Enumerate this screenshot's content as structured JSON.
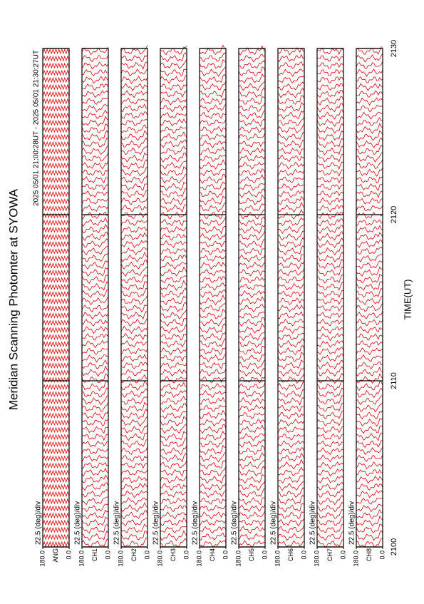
{
  "chart_data": {
    "type": "line",
    "title": "Meridian Scanning Photomter at SYOWA",
    "subtitle": "2025 05/01 21:00:28UT - 2025 05/01 21:30:27UT",
    "xlabel": "TIME(UT)",
    "xlim": [
      2100,
      2130
    ],
    "xticks": [
      2100,
      2110,
      2120,
      2130
    ],
    "ylim": [
      0,
      180
    ],
    "yticks": [
      {
        "value": 0,
        "label": "0.0"
      },
      {
        "value": 180,
        "label": "180.0"
      }
    ],
    "color": "#e00000",
    "panels": [
      {
        "name": "ANG",
        "scale_label": "22.5 (deg)/div"
      },
      {
        "name": "CH1",
        "scale_label": "22.5 (deg)/div"
      },
      {
        "name": "CH2",
        "scale_label": "22.5 (deg)/div"
      },
      {
        "name": "CH3",
        "scale_label": "22.5 (deg)/div"
      },
      {
        "name": "CH4",
        "scale_label": "22.5 (deg)/div"
      },
      {
        "name": "CH5",
        "scale_label": "22.5 (deg)/div"
      },
      {
        "name": "CH6",
        "scale_label": "22.5 (deg)/div"
      },
      {
        "name": "CH7",
        "scale_label": "22.5 (deg)/div"
      },
      {
        "name": "CH8",
        "scale_label": "22.5 (deg)/div"
      }
    ]
  }
}
